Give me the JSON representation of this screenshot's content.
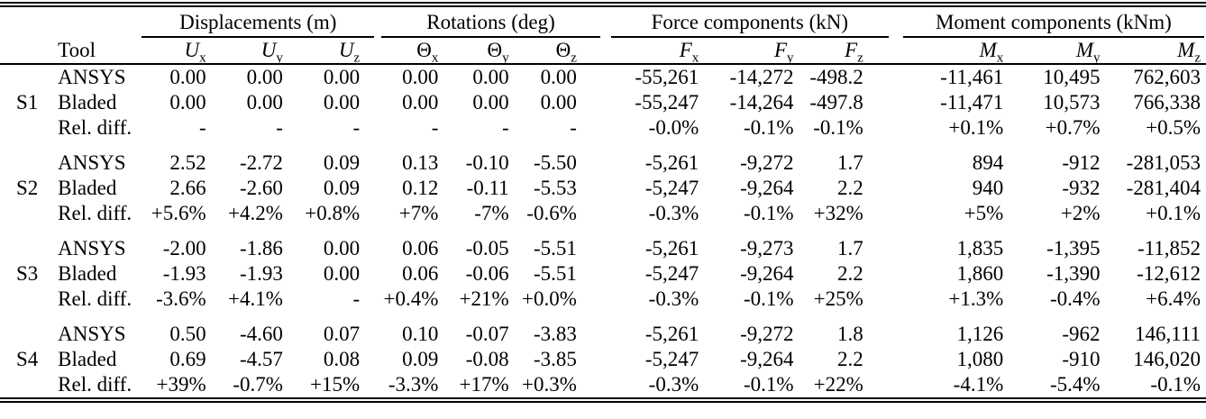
{
  "table": {
    "tool_header": "Tool",
    "groups": [
      {
        "label": "Displacements (m)",
        "cols": [
          {
            "base": "U",
            "sub": "x"
          },
          {
            "base": "U",
            "sub": "y"
          },
          {
            "base": "U",
            "sub": "z"
          }
        ]
      },
      {
        "label": "Rotations (deg)",
        "cols": [
          {
            "base": "Θ",
            "sub": "x"
          },
          {
            "base": "Θ",
            "sub": "y"
          },
          {
            "base": "Θ",
            "sub": "z"
          }
        ]
      },
      {
        "label": "Force components (kN)",
        "cols": [
          {
            "base": "F",
            "sub": "x"
          },
          {
            "base": "F",
            "sub": "y"
          },
          {
            "base": "F",
            "sub": "z"
          }
        ]
      },
      {
        "label": "Moment components (kNm)",
        "cols": [
          {
            "base": "M",
            "sub": "x"
          },
          {
            "base": "M",
            "sub": "y"
          },
          {
            "base": "M",
            "sub": "z"
          }
        ]
      }
    ],
    "sections": [
      {
        "label": "S1",
        "rows": [
          {
            "tool": "ANSYS",
            "values": [
              "0.00",
              "0.00",
              "0.00",
              "0.00",
              "0.00",
              "0.00",
              "-55,261",
              "-14,272",
              "-498.2",
              "-11,461",
              "10,495",
              "762,603"
            ]
          },
          {
            "tool": "Bladed",
            "values": [
              "0.00",
              "0.00",
              "0.00",
              "0.00",
              "0.00",
              "0.00",
              "-55,247",
              "-14,264",
              "-497.8",
              "-11,471",
              "10,573",
              "766,338"
            ]
          },
          {
            "tool": "Rel. diff.",
            "values": [
              "-",
              "-",
              "-",
              "-",
              "-",
              "-",
              "-0.0%",
              "-0.1%",
              "-0.1%",
              "+0.1%",
              "+0.7%",
              "+0.5%"
            ]
          }
        ]
      },
      {
        "label": "S2",
        "rows": [
          {
            "tool": "ANSYS",
            "values": [
              "2.52",
              "-2.72",
              "0.09",
              "0.13",
              "-0.10",
              "-5.50",
              "-5,261",
              "-9,272",
              "1.7",
              "894",
              "-912",
              "-281,053"
            ]
          },
          {
            "tool": "Bladed",
            "values": [
              "2.66",
              "-2.60",
              "0.09",
              "0.12",
              "-0.11",
              "-5.53",
              "-5,247",
              "-9,264",
              "2.2",
              "940",
              "-932",
              "-281,404"
            ]
          },
          {
            "tool": "Rel. diff.",
            "values": [
              "+5.6%",
              "+4.2%",
              "+0.8%",
              "+7%",
              "-7%",
              "-0.6%",
              "-0.3%",
              "-0.1%",
              "+32%",
              "+5%",
              "+2%",
              "+0.1%"
            ]
          }
        ]
      },
      {
        "label": "S3",
        "rows": [
          {
            "tool": "ANSYS",
            "values": [
              "-2.00",
              "-1.86",
              "0.00",
              "0.06",
              "-0.05",
              "-5.51",
              "-5,261",
              "-9,273",
              "1.7",
              "1,835",
              "-1,395",
              "-11,852"
            ]
          },
          {
            "tool": "Bladed",
            "values": [
              "-1.93",
              "-1.93",
              "0.00",
              "0.06",
              "-0.06",
              "-5.51",
              "-5,247",
              "-9,264",
              "2.2",
              "1,860",
              "-1,390",
              "-12,612"
            ]
          },
          {
            "tool": "Rel. diff.",
            "values": [
              "-3.6%",
              "+4.1%",
              "-",
              "+0.4%",
              "+21%",
              "+0.0%",
              "-0.3%",
              "-0.1%",
              "+25%",
              "+1.3%",
              "-0.4%",
              "+6.4%"
            ]
          }
        ]
      },
      {
        "label": "S4",
        "rows": [
          {
            "tool": "ANSYS",
            "values": [
              "0.50",
              "-4.60",
              "0.07",
              "0.10",
              "-0.07",
              "-3.83",
              "-5,261",
              "-9,272",
              "1.8",
              "1,126",
              "-962",
              "146,111"
            ]
          },
          {
            "tool": "Bladed",
            "values": [
              "0.69",
              "-4.57",
              "0.08",
              "0.09",
              "-0.08",
              "-3.85",
              "-5,247",
              "-9,264",
              "2.2",
              "1,080",
              "-910",
              "146,020"
            ]
          },
          {
            "tool": "Rel. diff.",
            "values": [
              "+39%",
              "-0.7%",
              "+15%",
              "-3.3%",
              "+17%",
              "+0.3%",
              "-0.3%",
              "-0.1%",
              "+22%",
              "-4.1%",
              "-5.4%",
              "-0.1%"
            ]
          }
        ]
      }
    ]
  },
  "colors": {
    "text": "#000000",
    "background": "#ffffff",
    "rule": "#000000"
  }
}
